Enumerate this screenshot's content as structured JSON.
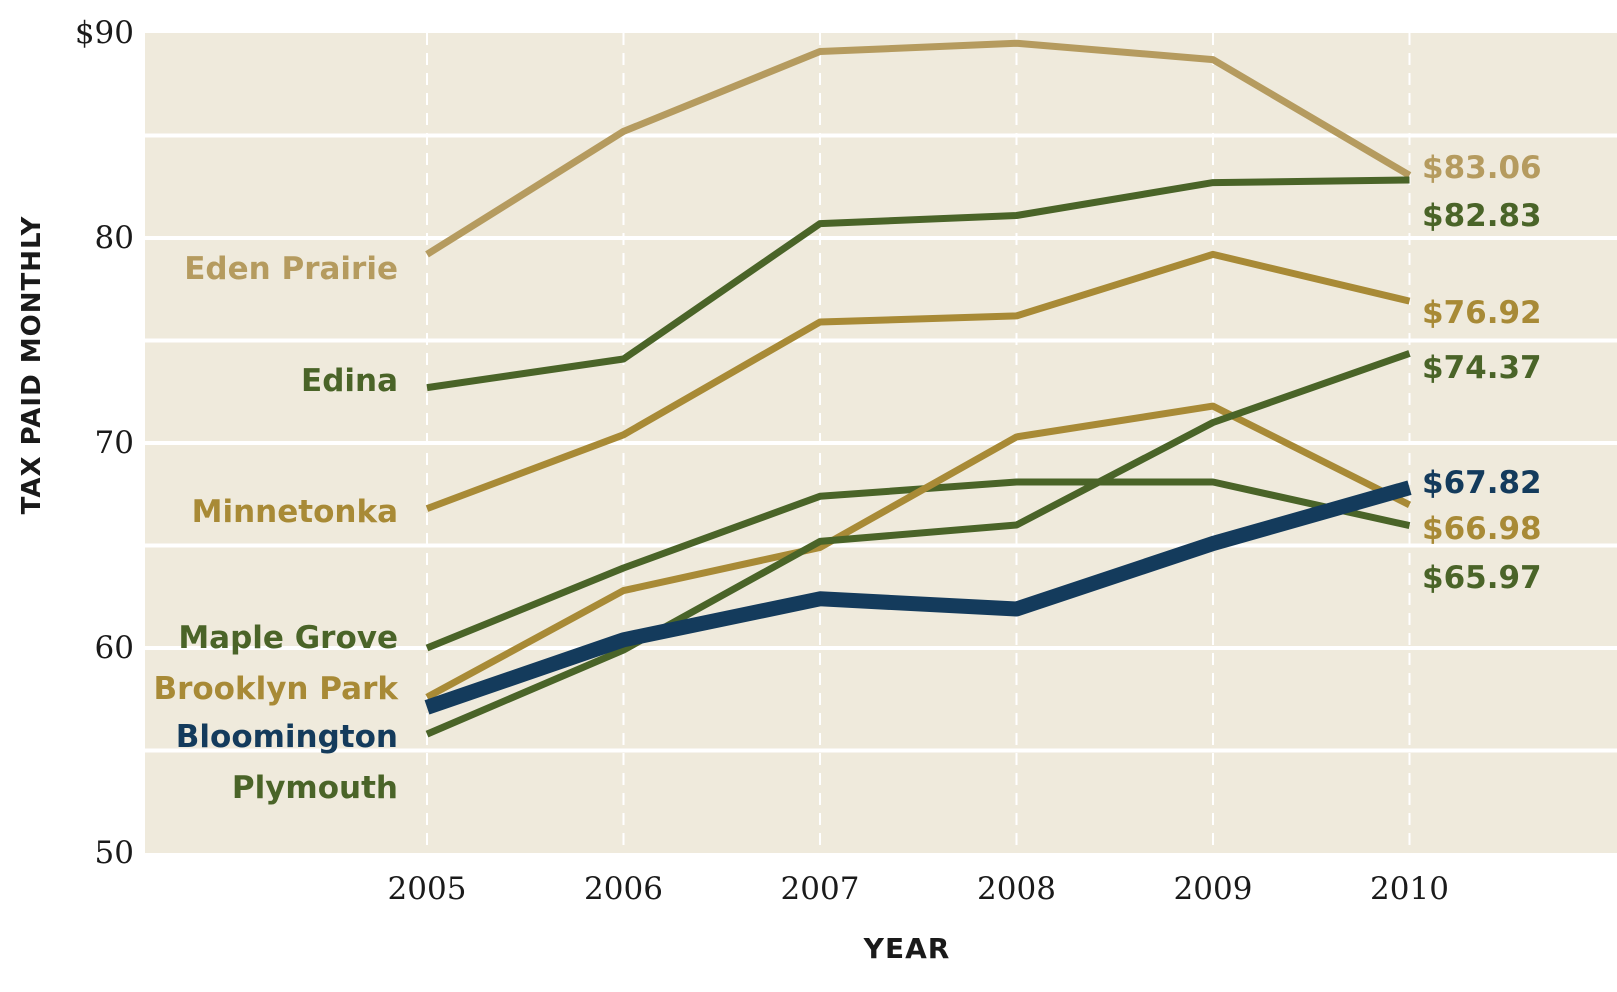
{
  "chart_data": {
    "type": "line",
    "title": "",
    "xlabel": "Year",
    "ylabel": "Tax paid monthly",
    "x": [
      2005,
      2006,
      2007,
      2008,
      2009,
      2010
    ],
    "x_tick_labels": [
      "2005",
      "2006",
      "2007",
      "2008",
      "2009",
      "2010"
    ],
    "ylim": [
      50,
      90
    ],
    "y_ticks": [
      50,
      60,
      70,
      80,
      90
    ],
    "y_tick_labels": [
      "50",
      "60",
      "70",
      "80",
      "$90"
    ],
    "grid": "horizontal",
    "background_color": "#efeadc",
    "series": [
      {
        "name": "Eden Prairie",
        "values": [
          79.2,
          85.2,
          89.1,
          89.5,
          88.7,
          83.06
        ],
        "end_label": "$83.06",
        "color": "#b59b5f",
        "highlight": false
      },
      {
        "name": "Edina",
        "values": [
          72.7,
          74.1,
          80.7,
          81.1,
          82.7,
          82.83
        ],
        "end_label": "$82.83",
        "color": "#4a6428",
        "highlight": false
      },
      {
        "name": "Minnetonka",
        "values": [
          66.8,
          70.4,
          75.9,
          76.2,
          79.2,
          76.92
        ],
        "end_label": "$76.92",
        "color": "#a88a36",
        "highlight": false
      },
      {
        "name": "Maple Grove",
        "values": [
          60.0,
          63.9,
          67.4,
          68.1,
          68.1,
          65.97
        ],
        "end_label": "$65.97",
        "color": "#4a6428",
        "highlight": false
      },
      {
        "name": "Brooklyn Park",
        "values": [
          57.6,
          62.8,
          64.9,
          70.3,
          71.8,
          66.98
        ],
        "end_label": "$66.98",
        "color": "#a88a36",
        "highlight": false
      },
      {
        "name": "Bloomington",
        "values": [
          57.1,
          60.4,
          62.4,
          61.9,
          65.1,
          67.82
        ],
        "end_label": "$67.82",
        "color": "#143b5c",
        "highlight": true
      },
      {
        "name": "Plymouth",
        "values": [
          55.8,
          59.9,
          65.2,
          66.0,
          71.0,
          74.37
        ],
        "end_label": "$74.37",
        "color": "#4a6428",
        "highlight": false
      }
    ]
  }
}
